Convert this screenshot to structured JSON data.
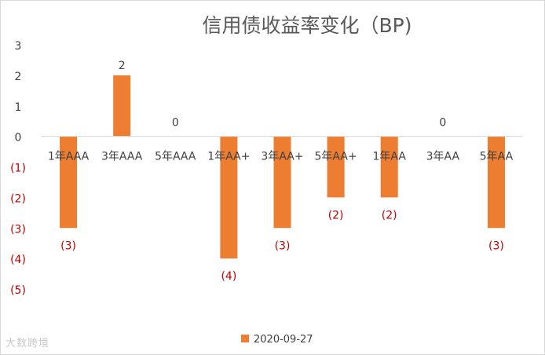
{
  "chart_data": {
    "type": "bar",
    "title": "信用债收益率变化（BP)",
    "categories": [
      "1年AAA",
      "3年AAA",
      "5年AAA",
      "1年AA+",
      "3年AA+",
      "5年AA+",
      "1年AA",
      "3年AA",
      "5年AA"
    ],
    "series": [
      {
        "name": "2020-09-27",
        "values": [
          -3,
          2,
          0,
          -4,
          -3,
          -2,
          -2,
          0,
          -3
        ],
        "data_labels": [
          "(3)",
          "2",
          "0",
          "(4)",
          "(3)",
          "(2)",
          "(2)",
          "0",
          "(3)"
        ]
      }
    ],
    "y_ticks": [
      3,
      2,
      1,
      0,
      -1,
      -2,
      -3,
      -4,
      -5
    ],
    "y_tick_labels": [
      "3",
      "2",
      "1",
      "0",
      "(1)",
      "(2)",
      "(3)",
      "(4)",
      "(5)"
    ],
    "ylim": [
      -5,
      3
    ],
    "xlabel": "",
    "ylabel": "",
    "grid": false,
    "legend_position": "bottom",
    "colors": {
      "bar": "#ed7d31",
      "negative_label": "#c00000",
      "positive_label": "#404040",
      "tick_label": "#404040",
      "title": "#595959"
    }
  },
  "watermark": "大数跨境"
}
